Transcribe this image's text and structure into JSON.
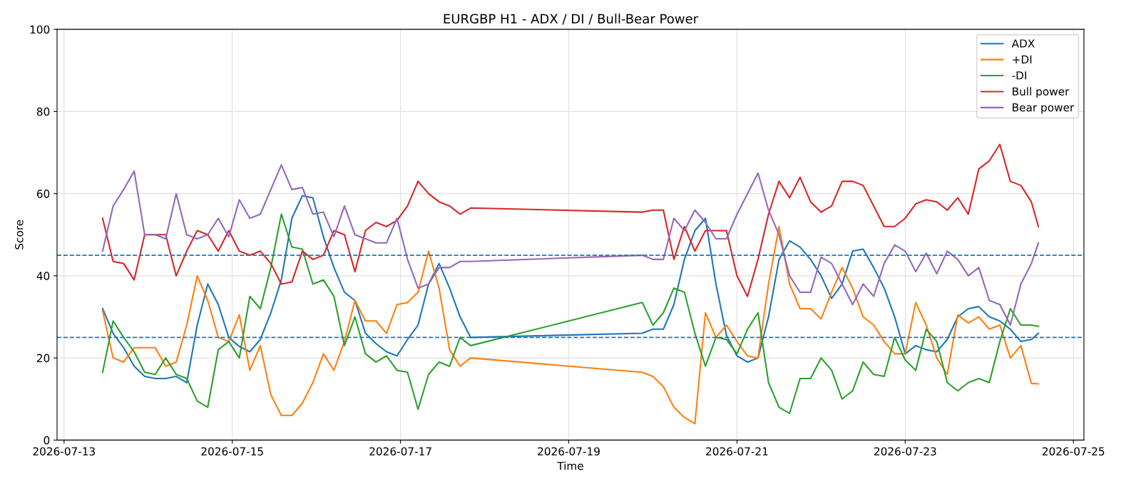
{
  "chart_data": {
    "type": "line",
    "title": "EURGBP H1 - ADX / DI / Bull-Bear Power",
    "xlabel": "Time",
    "ylabel": "Score",
    "x": [
      "2026-07-13T11:00",
      "2026-07-13T14:00",
      "2026-07-13T17:00",
      "2026-07-13T20:00",
      "2026-07-13T23:00",
      "2026-07-14T02:00",
      "2026-07-14T05:00",
      "2026-07-14T08:00",
      "2026-07-14T11:00",
      "2026-07-14T14:00",
      "2026-07-14T17:00",
      "2026-07-14T20:00",
      "2026-07-14T23:00",
      "2026-07-15T02:00",
      "2026-07-15T05:00",
      "2026-07-15T08:00",
      "2026-07-15T11:00",
      "2026-07-15T14:00",
      "2026-07-15T17:00",
      "2026-07-15T20:00",
      "2026-07-15T23:00",
      "2026-07-16T02:00",
      "2026-07-16T05:00",
      "2026-07-16T08:00",
      "2026-07-16T11:00",
      "2026-07-16T14:00",
      "2026-07-16T17:00",
      "2026-07-16T20:00",
      "2026-07-16T23:00",
      "2026-07-17T02:00",
      "2026-07-17T05:00",
      "2026-07-17T08:00",
      "2026-07-17T11:00",
      "2026-07-17T14:00",
      "2026-07-17T17:00",
      "2026-07-17T20:00",
      "2026-07-19T21:00",
      "2026-07-20T00:00",
      "2026-07-20T03:00",
      "2026-07-20T06:00",
      "2026-07-20T09:00",
      "2026-07-20T12:00",
      "2026-07-20T15:00",
      "2026-07-20T18:00",
      "2026-07-20T21:00",
      "2026-07-21T00:00",
      "2026-07-21T03:00",
      "2026-07-21T06:00",
      "2026-07-21T09:00",
      "2026-07-21T12:00",
      "2026-07-21T15:00",
      "2026-07-21T18:00",
      "2026-07-21T21:00",
      "2026-07-22T00:00",
      "2026-07-22T03:00",
      "2026-07-22T06:00",
      "2026-07-22T09:00",
      "2026-07-22T12:00",
      "2026-07-22T15:00",
      "2026-07-22T18:00",
      "2026-07-22T21:00",
      "2026-07-23T00:00",
      "2026-07-23T03:00",
      "2026-07-23T06:00",
      "2026-07-23T09:00",
      "2026-07-23T12:00",
      "2026-07-23T15:00",
      "2026-07-23T18:00",
      "2026-07-23T21:00",
      "2026-07-24T00:00",
      "2026-07-24T03:00",
      "2026-07-24T06:00",
      "2026-07-24T09:00",
      "2026-07-24T12:00",
      "2026-07-24T14:00"
    ],
    "series": [
      {
        "name": "ADX",
        "color": "#1f77b4",
        "values": [
          32,
          26,
          22.5,
          18,
          15.5,
          15,
          15,
          15.5,
          14,
          28,
          38,
          33,
          25,
          22.8,
          21.5,
          24.5,
          31,
          39,
          54,
          59.5,
          59,
          49.5,
          42,
          36,
          34,
          26,
          23.5,
          21.5,
          20.5,
          24.5,
          28,
          38,
          43,
          37,
          30,
          25,
          26,
          27,
          27,
          33,
          44,
          51,
          54,
          38,
          25.5,
          20.5,
          19,
          20,
          30,
          44,
          48.5,
          47,
          44,
          40,
          34.5,
          38,
          46,
          46.5,
          42,
          37,
          30,
          21,
          23,
          22,
          21.5,
          24.5,
          30,
          32,
          32.5,
          30,
          29,
          27,
          24,
          24.5,
          26
        ]
      },
      {
        "name": "+DI",
        "color": "#ff7f0e",
        "values": [
          31.5,
          20,
          19,
          22.5,
          22.5,
          22.5,
          18,
          19,
          28,
          40,
          34,
          25,
          24,
          30.5,
          17,
          23,
          11,
          6,
          6,
          9,
          14,
          21,
          17,
          24,
          34,
          29,
          29,
          26,
          33,
          33.5,
          36,
          46,
          37,
          22,
          18,
          20,
          16.5,
          15.5,
          13,
          8,
          5.5,
          4,
          31,
          25,
          28,
          24,
          20.5,
          20,
          38,
          52,
          38,
          32,
          32,
          29.5,
          36,
          42,
          37,
          30,
          28,
          24,
          21,
          21,
          33.5,
          28,
          20,
          16,
          30.5,
          28.5,
          30,
          27,
          28,
          20,
          23,
          13.8,
          13.7
        ]
      },
      {
        "name": "-DI",
        "color": "#2ca02c",
        "values": [
          16.5,
          29,
          25,
          21.5,
          16.5,
          16,
          20,
          16,
          15,
          9.5,
          8,
          22,
          24,
          20,
          35,
          32,
          42,
          55,
          47,
          46.5,
          38,
          39,
          35,
          23,
          30,
          21,
          19,
          20.5,
          17,
          16.5,
          7.5,
          16,
          19,
          18,
          25,
          23,
          33.5,
          28,
          31,
          37,
          36,
          26,
          18,
          25,
          24.5,
          21,
          27,
          31,
          14,
          8,
          6.5,
          15,
          15,
          20,
          17,
          10,
          12,
          19,
          16,
          15.5,
          25,
          19.5,
          17,
          27,
          24,
          14,
          12,
          14,
          15,
          14,
          24,
          32,
          28,
          28,
          27.7
        ]
      },
      {
        "name": "Bull power",
        "color": "#d62728",
        "values": [
          54,
          43.5,
          43,
          39,
          50,
          50,
          50,
          40,
          46,
          51,
          50,
          46,
          51,
          46,
          45,
          46,
          43,
          38,
          38.5,
          46,
          44,
          45,
          51,
          50,
          41,
          51,
          53,
          52,
          53.5,
          57,
          63,
          60,
          58,
          57,
          55,
          56.5,
          55.5,
          56,
          56,
          44,
          52,
          46,
          51,
          51,
          51,
          40,
          35,
          44,
          55,
          63,
          59,
          64,
          58,
          55.5,
          57,
          63,
          63,
          62,
          57,
          52,
          52,
          54,
          57.5,
          58.5,
          58,
          56,
          59,
          55,
          66,
          68,
          72,
          63,
          62,
          58,
          52
        ]
      },
      {
        "name": "Bear power",
        "color": "#9467bd",
        "values": [
          46,
          57,
          61,
          65.5,
          50,
          50,
          49,
          60,
          50,
          49,
          50,
          54,
          49.5,
          58.5,
          54,
          55,
          61,
          67,
          61,
          61.5,
          55,
          55.5,
          49.5,
          57,
          50,
          49,
          48,
          48,
          54,
          44,
          37,
          38,
          42,
          42,
          43.5,
          43.5,
          45,
          44,
          44,
          54,
          51,
          56,
          53,
          49,
          49,
          55,
          60,
          65,
          56,
          50,
          40,
          36,
          36,
          44.5,
          43,
          38,
          33,
          38,
          35,
          43,
          47.5,
          46,
          41,
          45.5,
          40.5,
          46,
          44,
          40,
          42,
          34,
          33,
          28,
          38,
          43,
          48
        ]
      }
    ],
    "ref_lines": [
      {
        "axis": "y",
        "value": 45,
        "color": "#1f77b4",
        "line_style": "dashed"
      },
      {
        "axis": "y",
        "value": 25,
        "color": "#1f77b4",
        "line_style": "dashed"
      }
    ],
    "xlim": [
      "2026-07-12T22:00",
      "2026-07-25T03:00"
    ],
    "xticks": [
      "2026-07-13",
      "2026-07-15",
      "2026-07-17",
      "2026-07-19",
      "2026-07-21",
      "2026-07-23",
      "2026-07-25"
    ],
    "ylim": [
      0,
      100
    ],
    "yticks": [
      0,
      20,
      40,
      60,
      80,
      100
    ],
    "grid": true,
    "legend": "top right",
    "marker": "none",
    "line_style": "solid"
  }
}
